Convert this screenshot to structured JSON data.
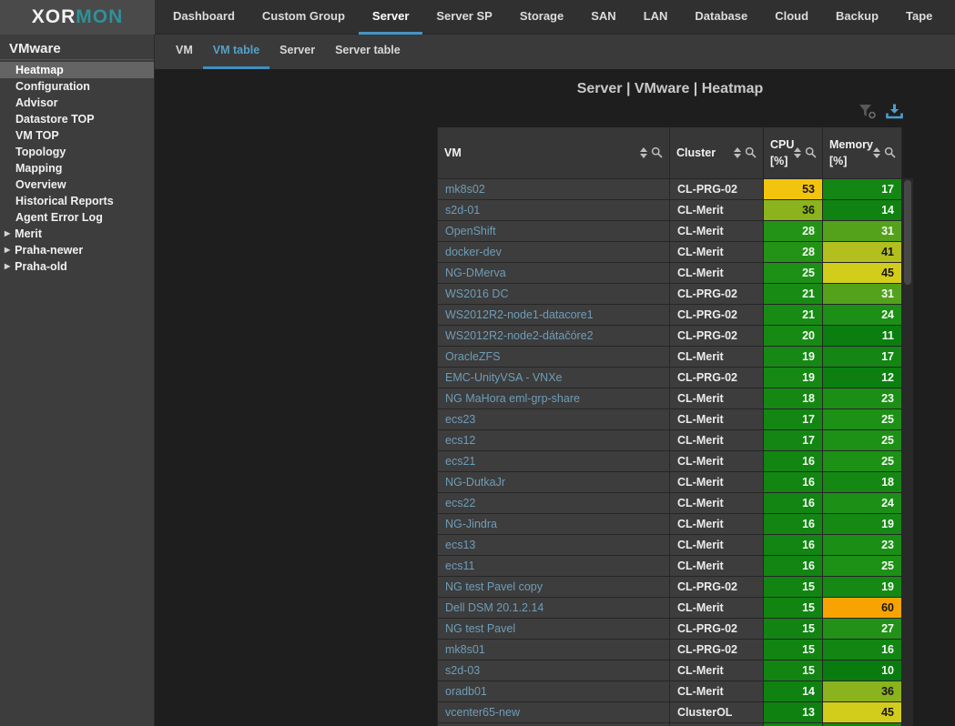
{
  "logo": {
    "text_primary": "XOR",
    "text_accent": "MON"
  },
  "colors": {
    "accent_underline": "#4494c4",
    "active_tab_text": "#55a1c9",
    "link_text": "#6e9db8",
    "logo_accent": "#2f9099",
    "download_icon": "#4b9ed2",
    "filter_icon": "#585858"
  },
  "top_nav": {
    "items": [
      {
        "label": "Dashboard",
        "active": false
      },
      {
        "label": "Custom Group",
        "active": false
      },
      {
        "label": "Server",
        "active": true
      },
      {
        "label": "Server SP",
        "active": false
      },
      {
        "label": "Storage",
        "active": false
      },
      {
        "label": "SAN",
        "active": false
      },
      {
        "label": "LAN",
        "active": false
      },
      {
        "label": "Database",
        "active": false
      },
      {
        "label": "Cloud",
        "active": false
      },
      {
        "label": "Backup",
        "active": false
      },
      {
        "label": "Tape",
        "active": false
      }
    ]
  },
  "sub_nav": {
    "items": [
      {
        "label": "VM",
        "active": false
      },
      {
        "label": "VM table",
        "active": true
      },
      {
        "label": "Server",
        "active": false
      },
      {
        "label": "Server table",
        "active": false
      }
    ]
  },
  "sidebar": {
    "title": "VMware",
    "items": [
      {
        "label": "Heatmap",
        "selected": true,
        "expandable": false
      },
      {
        "label": "Configuration",
        "selected": false,
        "expandable": false
      },
      {
        "label": "Advisor",
        "selected": false,
        "expandable": false
      },
      {
        "label": "Datastore TOP",
        "selected": false,
        "expandable": false
      },
      {
        "label": "VM TOP",
        "selected": false,
        "expandable": false
      },
      {
        "label": "Topology",
        "selected": false,
        "expandable": false
      },
      {
        "label": "Mapping",
        "selected": false,
        "expandable": false
      },
      {
        "label": "Overview",
        "selected": false,
        "expandable": false
      },
      {
        "label": "Historical Reports",
        "selected": false,
        "expandable": false
      },
      {
        "label": "Agent Error Log",
        "selected": false,
        "expandable": false
      },
      {
        "label": "Merit",
        "selected": false,
        "expandable": true
      },
      {
        "label": "Praha-newer",
        "selected": false,
        "expandable": true
      },
      {
        "label": "Praha-old",
        "selected": false,
        "expandable": true
      }
    ]
  },
  "main": {
    "breadcrumb": "Server | VMware | Heatmap",
    "toolbar_icons": [
      {
        "name": "filter-clear-icon"
      },
      {
        "name": "download-icon"
      }
    ],
    "table": {
      "columns": [
        {
          "label": "VM",
          "unit": ""
        },
        {
          "label": "Cluster",
          "unit": ""
        },
        {
          "label": "CPU",
          "unit": "[%]"
        },
        {
          "label": "Memory",
          "unit": "[%]"
        }
      ],
      "heat_scale": {
        "10": "#087c0e",
        "11": "#0a7e0f",
        "12": "#0c7f10",
        "13": "#0e8111",
        "14": "#0f8211",
        "15": "#118412",
        "16": "#128512",
        "17": "#148613",
        "18": "#158813",
        "19": "#168914",
        "20": "#178a14",
        "21": "#188b15",
        "23": "#1b8e16",
        "24": "#1c8f16",
        "25": "#1d9016",
        "27": "#219217",
        "28": "#239317",
        "31": "#54a11b",
        "36": "#8ab31d",
        "41": "#b2bf1e",
        "45": "#d2cc1b",
        "53": "#f2c40e",
        "60": "#f7a402"
      },
      "dark_text_min": 36,
      "value_text_light": "#f4f9f4",
      "value_text_dark": "#161616",
      "rows": [
        {
          "vm": "mk8s02",
          "cluster": "CL-PRG-02",
          "cpu": 53,
          "mem": 17
        },
        {
          "vm": "s2d-01",
          "cluster": "CL-Merit",
          "cpu": 36,
          "mem": 14
        },
        {
          "vm": "OpenShift",
          "cluster": "CL-Merit",
          "cpu": 28,
          "mem": 31
        },
        {
          "vm": "docker-dev",
          "cluster": "CL-Merit",
          "cpu": 28,
          "mem": 41
        },
        {
          "vm": "NG-DMerva",
          "cluster": "CL-Merit",
          "cpu": 25,
          "mem": 45
        },
        {
          "vm": "WS2016 DC",
          "cluster": "CL-PRG-02",
          "cpu": 21,
          "mem": 31
        },
        {
          "vm": "WS2012R2-node1-datacore1",
          "cluster": "CL-PRG-02",
          "cpu": 21,
          "mem": 24
        },
        {
          "vm": "WS2012R2-node2-dátačóre2",
          "cluster": "CL-PRG-02",
          "cpu": 20,
          "mem": 11
        },
        {
          "vm": "OracleZFS",
          "cluster": "CL-Merit",
          "cpu": 19,
          "mem": 17
        },
        {
          "vm": "EMC-UnityVSA - VNXe",
          "cluster": "CL-PRG-02",
          "cpu": 19,
          "mem": 12
        },
        {
          "vm": "NG MaHora eml-grp-share",
          "cluster": "CL-Merit",
          "cpu": 18,
          "mem": 23
        },
        {
          "vm": "ecs23",
          "cluster": "CL-Merit",
          "cpu": 17,
          "mem": 25
        },
        {
          "vm": "ecs12",
          "cluster": "CL-Merit",
          "cpu": 17,
          "mem": 25
        },
        {
          "vm": "ecs21",
          "cluster": "CL-Merit",
          "cpu": 16,
          "mem": 25
        },
        {
          "vm": "NG-DutkaJr",
          "cluster": "CL-Merit",
          "cpu": 16,
          "mem": 18
        },
        {
          "vm": "ecs22",
          "cluster": "CL-Merit",
          "cpu": 16,
          "mem": 24
        },
        {
          "vm": "NG-Jindra",
          "cluster": "CL-Merit",
          "cpu": 16,
          "mem": 19
        },
        {
          "vm": "ecs13",
          "cluster": "CL-Merit",
          "cpu": 16,
          "mem": 23
        },
        {
          "vm": "ecs11",
          "cluster": "CL-Merit",
          "cpu": 16,
          "mem": 25
        },
        {
          "vm": "NG test Pavel copy",
          "cluster": "CL-PRG-02",
          "cpu": 15,
          "mem": 19
        },
        {
          "vm": "Dell DSM 20.1.2.14",
          "cluster": "CL-Merit",
          "cpu": 15,
          "mem": 60
        },
        {
          "vm": "NG test Pavel",
          "cluster": "CL-PRG-02",
          "cpu": 15,
          "mem": 27
        },
        {
          "vm": "mk8s01",
          "cluster": "CL-PRG-02",
          "cpu": 15,
          "mem": 16
        },
        {
          "vm": "s2d-03",
          "cluster": "CL-Merit",
          "cpu": 15,
          "mem": 10
        },
        {
          "vm": "oradb01",
          "cluster": "CL-Merit",
          "cpu": 14,
          "mem": 36
        },
        {
          "vm": "vcenter65-new",
          "cluster": "ClusterOL",
          "cpu": 13,
          "mem": 45
        }
      ],
      "partial_row": {
        "visible": true,
        "cpu_color": "#148613",
        "mem_color": "#148613"
      }
    }
  }
}
